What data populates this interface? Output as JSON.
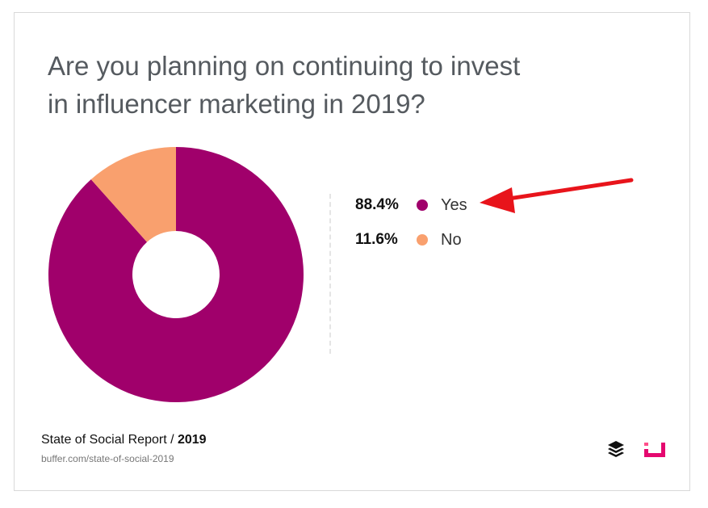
{
  "title_line1": "Are you planning on continuing to invest",
  "title_line2": "in influencer marketing in 2019?",
  "chart_data": {
    "type": "pie",
    "style": "donut",
    "categories": [
      "Yes",
      "No"
    ],
    "values": [
      88.4,
      11.6
    ],
    "value_labels": [
      "88.4%",
      "11.6%"
    ],
    "colors": [
      "#a0006b",
      "#f9a06e"
    ],
    "legend_placement": "right"
  },
  "footer": {
    "source_prefix": "State of Social Report / ",
    "source_year": "2019",
    "url": "buffer.com/state-of-social-2019"
  },
  "icons": [
    "buffer-logo-icon",
    "brand-logo-icon",
    "red-arrow-annotation"
  ]
}
